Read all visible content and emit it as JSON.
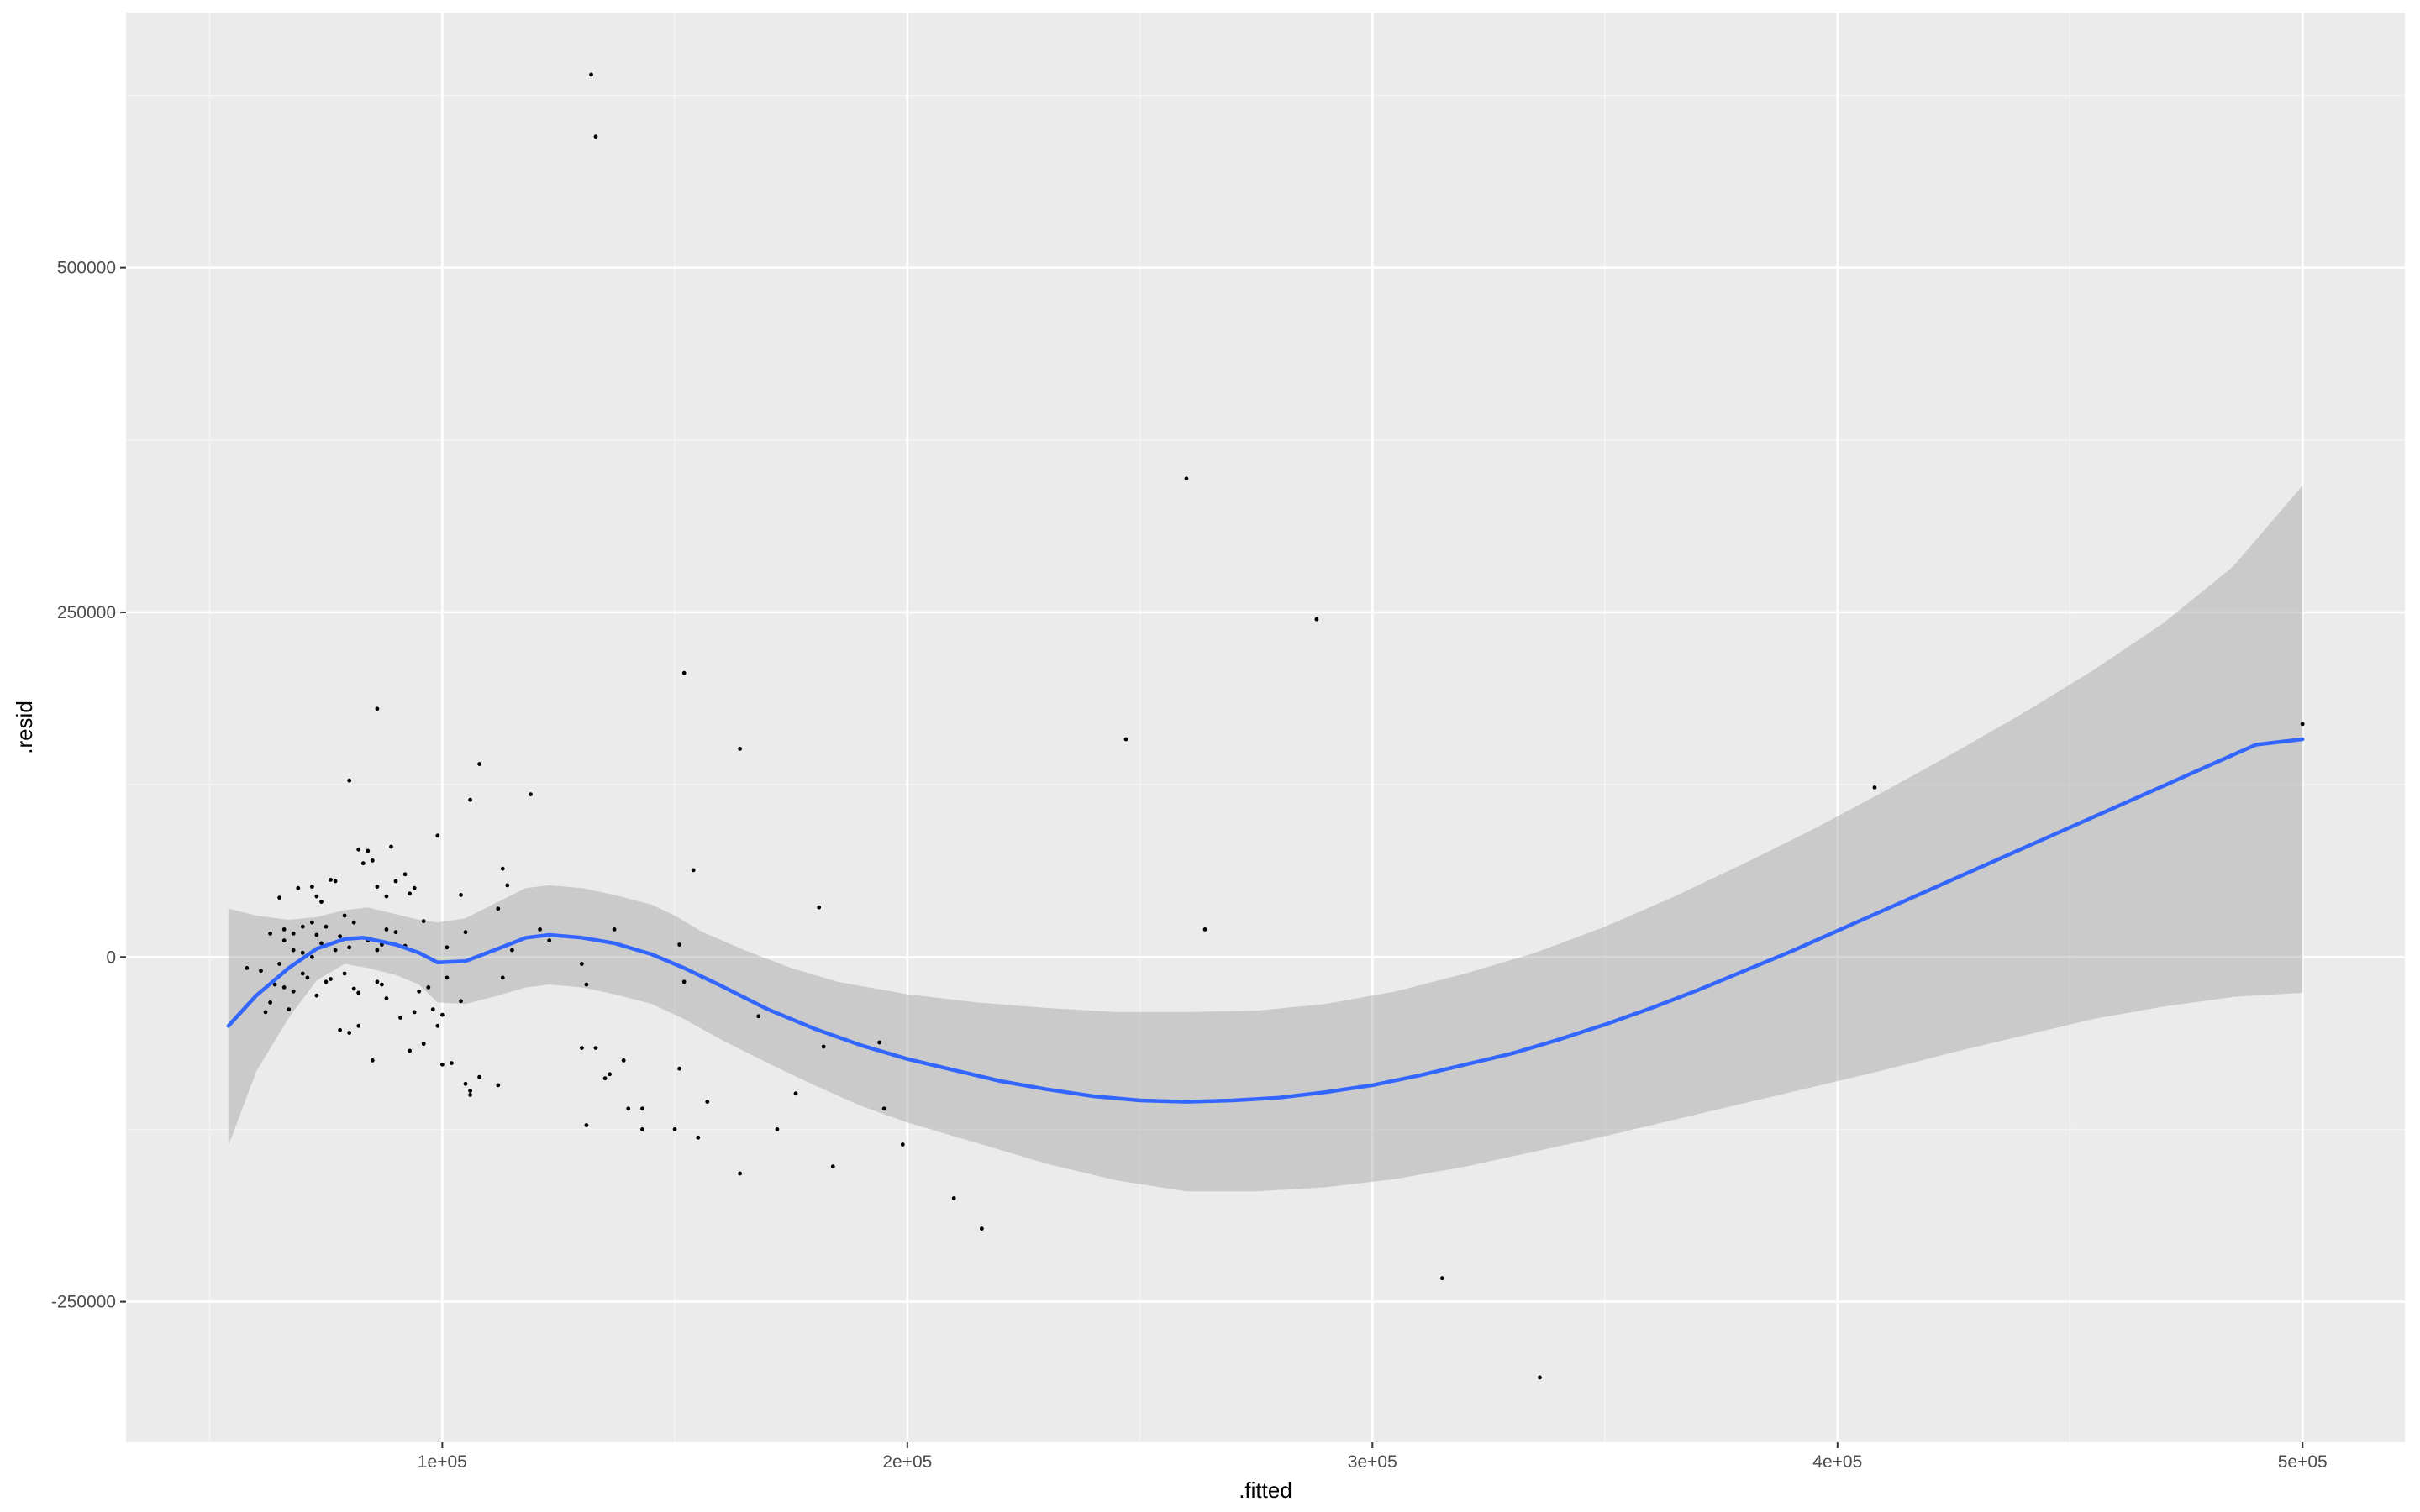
{
  "chart_data": {
    "type": "scatter",
    "xlabel": ".fitted",
    "ylabel": ".resid",
    "xlim": [
      32000,
      522000
    ],
    "ylim": [
      -352000,
      685000
    ],
    "x_major_ticks": [
      100000,
      200000,
      300000,
      400000,
      500000
    ],
    "x_minor_ticks": [
      50000,
      150000,
      250000,
      350000,
      450000
    ],
    "x_tick_labels": [
      "1e+05",
      "2e+05",
      "3e+05",
      "4e+05",
      "5e+05"
    ],
    "y_major_ticks": [
      -250000,
      0,
      250000,
      500000
    ],
    "y_minor_ticks": [
      -375000,
      -125000,
      125000,
      375000,
      625000
    ],
    "y_tick_labels": [
      "-250000",
      "0",
      "250000",
      "500000"
    ],
    "grid": true,
    "colors": {
      "panel_background": "#ebebeb",
      "grid_major": "#ffffff",
      "grid_minor": "#f5f5f5",
      "points": "#000000",
      "smooth_line": "#3366ff",
      "confidence_band": "#999999"
    },
    "series": [
      {
        "type": "points",
        "points": [
          [
            132000,
            640000
          ],
          [
            133000,
            595000
          ],
          [
            260000,
            347000
          ],
          [
            288000,
            245000
          ],
          [
            152000,
            206000
          ],
          [
            247000,
            158000
          ],
          [
            164000,
            151000
          ],
          [
            408000,
            123000
          ],
          [
            500000,
            169000
          ],
          [
            86000,
            180000
          ],
          [
            108000,
            140000
          ],
          [
            119000,
            118000
          ],
          [
            106000,
            114000
          ],
          [
            80000,
            128000
          ],
          [
            99000,
            88000
          ],
          [
            154000,
            63000
          ],
          [
            181000,
            36000
          ],
          [
            264000,
            20000
          ],
          [
            137000,
            20000
          ],
          [
            121000,
            20000
          ],
          [
            89000,
            80000
          ],
          [
            82000,
            78000
          ],
          [
            84000,
            77000
          ],
          [
            83000,
            68000
          ],
          [
            85000,
            70000
          ],
          [
            92000,
            60000
          ],
          [
            113000,
            64000
          ],
          [
            90000,
            55000
          ],
          [
            94000,
            50000
          ],
          [
            86000,
            51000
          ],
          [
            69000,
            50000
          ],
          [
            72000,
            51000
          ],
          [
            76000,
            56000
          ],
          [
            77000,
            55000
          ],
          [
            114000,
            52000
          ],
          [
            73000,
            44000
          ],
          [
            65000,
            43000
          ],
          [
            74000,
            40000
          ],
          [
            104000,
            45000
          ],
          [
            88000,
            44000
          ],
          [
            93000,
            46000
          ],
          [
            96000,
            26000
          ],
          [
            105000,
            18000
          ],
          [
            112000,
            35000
          ],
          [
            79000,
            30000
          ],
          [
            72000,
            25000
          ],
          [
            81000,
            25000
          ],
          [
            70000,
            22000
          ],
          [
            66000,
            20000
          ],
          [
            75000,
            22000
          ],
          [
            68000,
            17000
          ],
          [
            73000,
            16000
          ],
          [
            78000,
            15000
          ],
          [
            63000,
            17000
          ],
          [
            84000,
            12000
          ],
          [
            88000,
            20000
          ],
          [
            90000,
            18000
          ],
          [
            74000,
            10000
          ],
          [
            66000,
            12000
          ],
          [
            68000,
            5000
          ],
          [
            70000,
            3000
          ],
          [
            72000,
            0
          ],
          [
            77000,
            5000
          ],
          [
            80000,
            7000
          ],
          [
            86000,
            5000
          ],
          [
            87000,
            9000
          ],
          [
            92000,
            8000
          ],
          [
            101000,
            7000
          ],
          [
            115000,
            5000
          ],
          [
            123000,
            12000
          ],
          [
            151000,
            9000
          ],
          [
            58000,
            -8000
          ],
          [
            61000,
            -10000
          ],
          [
            65000,
            -5000
          ],
          [
            70000,
            -12000
          ],
          [
            75000,
            -18000
          ],
          [
            76000,
            -16000
          ],
          [
            64000,
            -20000
          ],
          [
            66000,
            -22000
          ],
          [
            68000,
            -25000
          ],
          [
            71000,
            -15000
          ],
          [
            73000,
            -28000
          ],
          [
            79000,
            -12000
          ],
          [
            81000,
            -23000
          ],
          [
            82000,
            -26000
          ],
          [
            86000,
            -18000
          ],
          [
            87000,
            -20000
          ],
          [
            95000,
            -25000
          ],
          [
            88000,
            -30000
          ],
          [
            97000,
            -22000
          ],
          [
            101000,
            -15000
          ],
          [
            104000,
            -32000
          ],
          [
            113000,
            -15000
          ],
          [
            130000,
            -5000
          ],
          [
            131000,
            -20000
          ],
          [
            152000,
            -18000
          ],
          [
            156000,
            -15000
          ],
          [
            168000,
            -43000
          ],
          [
            62000,
            -40000
          ],
          [
            67000,
            -38000
          ],
          [
            63000,
            -33000
          ],
          [
            91000,
            -44000
          ],
          [
            99000,
            -50000
          ],
          [
            78000,
            -53000
          ],
          [
            80000,
            -55000
          ],
          [
            82000,
            -50000
          ],
          [
            94000,
            -40000
          ],
          [
            98000,
            -38000
          ],
          [
            100000,
            -42000
          ],
          [
            96000,
            -63000
          ],
          [
            93000,
            -68000
          ],
          [
            85000,
            -75000
          ],
          [
            100000,
            -78000
          ],
          [
            102000,
            -77000
          ],
          [
            108000,
            -87000
          ],
          [
            105000,
            -92000
          ],
          [
            106000,
            -100000
          ],
          [
            106000,
            -97000
          ],
          [
            112000,
            -93000
          ],
          [
            130000,
            -66000
          ],
          [
            133000,
            -66000
          ],
          [
            136000,
            -85000
          ],
          [
            135000,
            -88000
          ],
          [
            139000,
            -75000
          ],
          [
            140000,
            -110000
          ],
          [
            143000,
            -110000
          ],
          [
            151000,
            -81000
          ],
          [
            157000,
            -105000
          ],
          [
            176000,
            -99000
          ],
          [
            182000,
            -65000
          ],
          [
            194000,
            -62000
          ],
          [
            195000,
            -110000
          ],
          [
            131000,
            -122000
          ],
          [
            143000,
            -125000
          ],
          [
            150000,
            -125000
          ],
          [
            155000,
            -131000
          ],
          [
            172000,
            -125000
          ],
          [
            199000,
            -136000
          ],
          [
            164000,
            -157000
          ],
          [
            184000,
            -152000
          ],
          [
            210000,
            -175000
          ],
          [
            216000,
            -197000
          ],
          [
            315000,
            -233000
          ],
          [
            336000,
            -305000
          ]
        ]
      },
      {
        "type": "smooth",
        "method": "loess",
        "fit": [
          [
            54000,
            -50000
          ],
          [
            60000,
            -28000
          ],
          [
            67000,
            -8000
          ],
          [
            73000,
            6000
          ],
          [
            79000,
            13000
          ],
          [
            83000,
            14000
          ],
          [
            90000,
            9000
          ],
          [
            95000,
            3000
          ],
          [
            99000,
            -4000
          ],
          [
            105000,
            -3000
          ],
          [
            112000,
            6000
          ],
          [
            118000,
            14000
          ],
          [
            123000,
            16000
          ],
          [
            130000,
            14000
          ],
          [
            137000,
            10000
          ],
          [
            145000,
            2000
          ],
          [
            152000,
            -8000
          ],
          [
            160000,
            -21000
          ],
          [
            170000,
            -38000
          ],
          [
            180000,
            -52000
          ],
          [
            190000,
            -64000
          ],
          [
            200000,
            -74000
          ],
          [
            210000,
            -82000
          ],
          [
            220000,
            -90000
          ],
          [
            230000,
            -96000
          ],
          [
            240000,
            -101000
          ],
          [
            250000,
            -104000
          ],
          [
            260000,
            -105000
          ],
          [
            270000,
            -104000
          ],
          [
            280000,
            -102000
          ],
          [
            290000,
            -98000
          ],
          [
            300000,
            -93000
          ],
          [
            310000,
            -86000
          ],
          [
            320000,
            -78000
          ],
          [
            330000,
            -70000
          ],
          [
            340000,
            -60000
          ],
          [
            350000,
            -49000
          ],
          [
            360000,
            -37000
          ],
          [
            370000,
            -24000
          ],
          [
            380000,
            -10000
          ],
          [
            390000,
            4000
          ],
          [
            400000,
            19000
          ],
          [
            410000,
            34000
          ],
          [
            420000,
            49000
          ],
          [
            430000,
            64000
          ],
          [
            440000,
            79000
          ],
          [
            450000,
            94000
          ],
          [
            460000,
            109000
          ],
          [
            470000,
            124000
          ],
          [
            480000,
            139000
          ],
          [
            490000,
            154000
          ],
          [
            500000,
            158000
          ]
        ],
        "band_upper": [
          [
            54000,
            35000
          ],
          [
            60000,
            30000
          ],
          [
            67000,
            27000
          ],
          [
            73000,
            29000
          ],
          [
            79000,
            34000
          ],
          [
            84000,
            36000
          ],
          [
            90000,
            31000
          ],
          [
            95000,
            27000
          ],
          [
            99000,
            25000
          ],
          [
            105000,
            28000
          ],
          [
            112000,
            40000
          ],
          [
            118000,
            50000
          ],
          [
            123000,
            52000
          ],
          [
            130000,
            50000
          ],
          [
            137000,
            45000
          ],
          [
            145000,
            38000
          ],
          [
            150000,
            30000
          ],
          [
            156000,
            18000
          ],
          [
            165000,
            5000
          ],
          [
            175000,
            -8000
          ],
          [
            185000,
            -18000
          ],
          [
            200000,
            -27000
          ],
          [
            215000,
            -33000
          ],
          [
            230000,
            -37000
          ],
          [
            245000,
            -40000
          ],
          [
            260000,
            -40000
          ],
          [
            275000,
            -39000
          ],
          [
            290000,
            -34000
          ],
          [
            305000,
            -25000
          ],
          [
            320000,
            -12000
          ],
          [
            335000,
            3000
          ],
          [
            350000,
            22000
          ],
          [
            365000,
            44000
          ],
          [
            380000,
            68000
          ],
          [
            395000,
            93000
          ],
          [
            410000,
            120000
          ],
          [
            425000,
            148000
          ],
          [
            440000,
            177000
          ],
          [
            455000,
            208000
          ],
          [
            470000,
            242000
          ],
          [
            485000,
            283000
          ],
          [
            500000,
            342000
          ]
        ],
        "band_lower": [
          [
            54000,
            -137000
          ],
          [
            60000,
            -83000
          ],
          [
            67000,
            -44000
          ],
          [
            73000,
            -17000
          ],
          [
            79000,
            -5000
          ],
          [
            84000,
            -8000
          ],
          [
            90000,
            -13000
          ],
          [
            95000,
            -20000
          ],
          [
            99000,
            -33000
          ],
          [
            105000,
            -34000
          ],
          [
            112000,
            -28000
          ],
          [
            118000,
            -22000
          ],
          [
            123000,
            -20000
          ],
          [
            130000,
            -22000
          ],
          [
            137000,
            -27000
          ],
          [
            145000,
            -34000
          ],
          [
            152000,
            -45000
          ],
          [
            160000,
            -60000
          ],
          [
            170000,
            -77000
          ],
          [
            180000,
            -93000
          ],
          [
            190000,
            -108000
          ],
          [
            200000,
            -120000
          ],
          [
            215000,
            -135000
          ],
          [
            230000,
            -150000
          ],
          [
            245000,
            -162000
          ],
          [
            260000,
            -170000
          ],
          [
            275000,
            -170000
          ],
          [
            290000,
            -167000
          ],
          [
            305000,
            -161000
          ],
          [
            320000,
            -152000
          ],
          [
            335000,
            -141000
          ],
          [
            350000,
            -130000
          ],
          [
            365000,
            -118000
          ],
          [
            380000,
            -106000
          ],
          [
            395000,
            -94000
          ],
          [
            410000,
            -82000
          ],
          [
            425000,
            -69000
          ],
          [
            440000,
            -57000
          ],
          [
            455000,
            -45000
          ],
          [
            470000,
            -36000
          ],
          [
            485000,
            -29000
          ],
          [
            500000,
            -26000
          ]
        ]
      }
    ]
  }
}
